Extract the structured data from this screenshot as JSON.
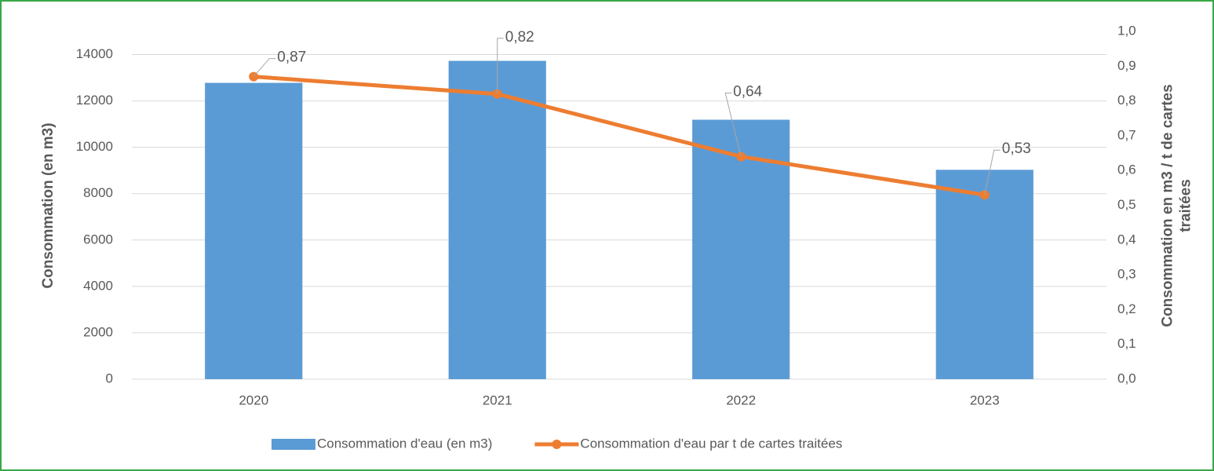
{
  "chart_data": {
    "type": "bar-line",
    "categories": [
      "2020",
      "2021",
      "2022",
      "2023"
    ],
    "series": [
      {
        "name": "Consommation d'eau (en m3)",
        "type": "bar",
        "color": "#5b9bd5",
        "values": [
          12780,
          13730,
          11190,
          9030
        ]
      },
      {
        "name": "Consommation d'eau par t de cartes traitées",
        "type": "line",
        "axis": "y2",
        "color": "#ed7d31",
        "values": [
          0.87,
          0.82,
          0.64,
          0.53
        ],
        "value_labels": [
          "0,87",
          "0,82",
          "0,64",
          "0,53"
        ]
      }
    ],
    "ylabel": "Consommation (en m3)",
    "y2label": "Consommation en m3 / t de cartes traitées",
    "ylim": [
      0,
      15000
    ],
    "yticks": [
      0,
      2000,
      4000,
      6000,
      8000,
      10000,
      12000,
      14000
    ],
    "y2lim": [
      0,
      1.0
    ],
    "y2ticks": [
      {
        "value": 0,
        "label": "0,0"
      },
      {
        "value": 0.1,
        "label": "0,1"
      },
      {
        "value": 0.2,
        "label": "0,2"
      },
      {
        "value": 0.3,
        "label": "0,3"
      },
      {
        "value": 0.4,
        "label": "0,4"
      },
      {
        "value": 0.5,
        "label": "0,5"
      },
      {
        "value": 0.6,
        "label": "0,6"
      },
      {
        "value": 0.7,
        "label": "0,7"
      },
      {
        "value": 0.8,
        "label": "0,8"
      },
      {
        "value": 0.9,
        "label": "0,9"
      },
      {
        "value": 1.0,
        "label": "1,0"
      }
    ],
    "grid": true,
    "legend": "bottom"
  }
}
